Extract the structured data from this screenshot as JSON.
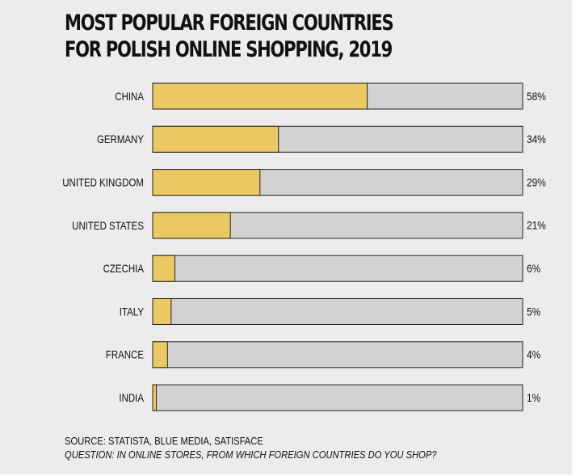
{
  "title_line1": "MOST POPULAR FOREIGN COUNTRIES",
  "title_line2": "FOR POLISH ONLINE SHOPPING, 2019",
  "source": "SOURCE: STATISTA, BLUE MEDIA, SATISFACE",
  "question": "QUESTION: IN ONLINE STORES, FROM WHICH FOREIGN COUNTRIES DO YOU SHOP?",
  "chart_data": {
    "type": "bar",
    "orientation": "horizontal",
    "title": "MOST POPULAR FOREIGN COUNTRIES FOR POLISH ONLINE SHOPPING, 2019",
    "categories": [
      "CHINA",
      "GERMANY",
      "UNITED KINGDOM",
      "UNITED STATES",
      "CZECHIA",
      "ITALY",
      "FRANCE",
      "INDIA"
    ],
    "values": [
      58,
      34,
      29,
      21,
      6,
      5,
      4,
      1
    ],
    "data_labels": [
      "58%",
      "34%",
      "29%",
      "21%",
      "6%",
      "5%",
      "4%",
      "1%"
    ],
    "xlim": [
      0,
      100
    ],
    "unit": "%",
    "grid": false,
    "legend": "none",
    "colors": {
      "bar_fill": "#ecc862",
      "track_fill": "#d2d2d2",
      "outline": "#222222"
    }
  }
}
